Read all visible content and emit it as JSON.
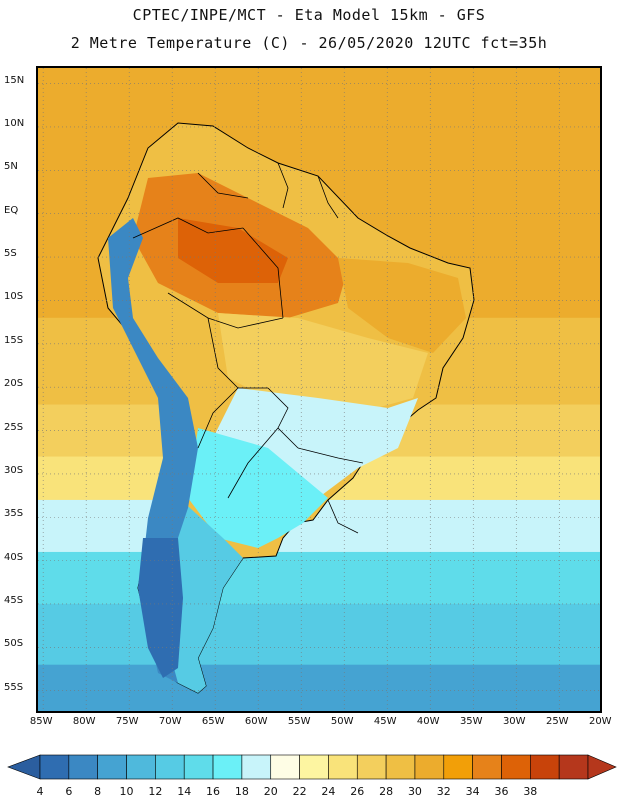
{
  "header": {
    "line1": "CPTEC/INPE/MCT -  Eta Model 15km - GFS",
    "line2": "2 Metre Temperature (C) - 26/05/2020 12UTC fct=35h"
  },
  "map": {
    "lat_labels": [
      "15N",
      "10N",
      "5N",
      "EQ",
      "5S",
      "10S",
      "15S",
      "20S",
      "25S",
      "30S",
      "35S",
      "40S",
      "45S",
      "50S",
      "55S"
    ],
    "lon_labels": [
      "85W",
      "80W",
      "75W",
      "70W",
      "65W",
      "60W",
      "55W",
      "50W",
      "45W",
      "40W",
      "35W",
      "30W",
      "25W",
      "20W"
    ],
    "lat_values": [
      15,
      10,
      5,
      0,
      -5,
      -10,
      -15,
      -20,
      -25,
      -30,
      -35,
      -40,
      -45,
      -50,
      -55
    ],
    "lon_values": [
      -85,
      -80,
      -75,
      -70,
      -65,
      -60,
      -55,
      -50,
      -45,
      -40,
      -35,
      -30,
      -25,
      -20
    ],
    "extent": {
      "lon_min": -85.6,
      "lon_max": -19.8,
      "lat_min": -57.8,
      "lat_max": 16.8
    },
    "ocean_bands_by_latitude": [
      {
        "lat_from": 17,
        "lat_to": 5,
        "temp_class": "28-30"
      },
      {
        "lat_from": 5,
        "lat_to": -12,
        "temp_class": "28-30"
      },
      {
        "lat_from": -12,
        "lat_to": -22,
        "temp_class": "26-28"
      },
      {
        "lat_from": -22,
        "lat_to": -28,
        "temp_class": "24-26"
      },
      {
        "lat_from": -28,
        "lat_to": -33,
        "temp_class": "22-24"
      },
      {
        "lat_from": -33,
        "lat_to": -39,
        "temp_class": "16-18"
      },
      {
        "lat_from": -39,
        "lat_to": -45,
        "temp_class": "12-14"
      },
      {
        "lat_from": -45,
        "lat_to": -52,
        "temp_class": "10-12"
      },
      {
        "lat_from": -52,
        "lat_to": -58,
        "temp_class": "6-8"
      }
    ]
  },
  "colorbar": {
    "labels": [
      "4",
      "6",
      "8",
      "10",
      "12",
      "14",
      "16",
      "18",
      "20",
      "22",
      "24",
      "26",
      "28",
      "30",
      "32",
      "34",
      "36",
      "38"
    ],
    "colors": [
      "#2f6db1",
      "#3b88c3",
      "#45a3d2",
      "#4fb9dc",
      "#56cbe4",
      "#5fdcea",
      "#6bf0f7",
      "#c8f4fa",
      "#fefde5",
      "#fdf5a1",
      "#f9e37a",
      "#f3cf5d",
      "#efbf44",
      "#ecac2d",
      "#f29f08",
      "#e6821a",
      "#dd6207",
      "#c8430a",
      "#b5371c"
    ],
    "low_arrow_color": "#2b5e9f",
    "high_arrow_color": "#b5371c"
  }
}
